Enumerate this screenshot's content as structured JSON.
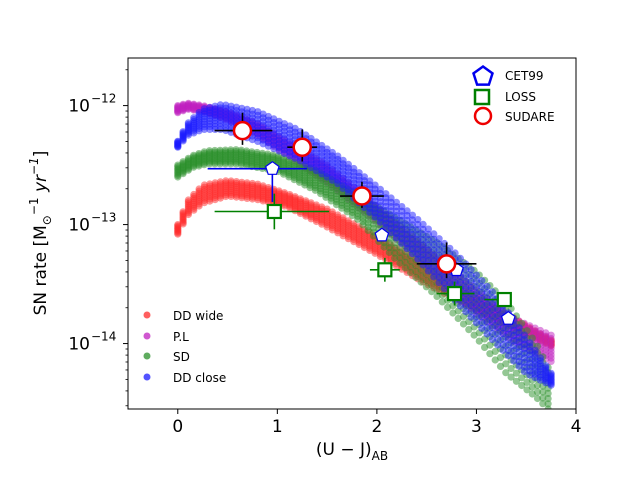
{
  "chart_data": {
    "type": "scatter",
    "title": "",
    "xlabel": "(U − J)",
    "xlabel_sub": "AB",
    "ylabel": "SN rate [M",
    "ylabel_sub": "⊙",
    "ylabel_sup": "−1",
    "ylabel_tail": " yr",
    "ylabel_tail_sup": "−1",
    "ylabel_close": "]",
    "xlim": [
      -0.5,
      4.0
    ],
    "ylim_log10": [
      -14.55,
      -11.6
    ],
    "xticks": [
      0,
      1,
      2,
      3,
      4
    ],
    "xtick_labels": [
      "0",
      "1",
      "2",
      "3",
      "4"
    ],
    "yticks_log10": [
      -14,
      -13,
      -12
    ],
    "ytick_labels": [
      "10",
      "10",
      "10"
    ],
    "ytick_exponents": [
      "−14",
      "−13",
      "−12"
    ],
    "legend_position": "upper-right",
    "legend2_position": "lower-left",
    "model_series": [
      {
        "name": "DD wide",
        "color": "#ff2a2a",
        "x": [
          0.0,
          0.1,
          0.25,
          0.5,
          0.8,
          1.1,
          1.5,
          2.0,
          2.5,
          3.0,
          3.4,
          3.75
        ],
        "upper": [
          -13.0,
          -12.8,
          -12.67,
          -12.63,
          -12.66,
          -12.74,
          -12.87,
          -13.1,
          -13.35,
          -13.62,
          -13.8,
          -13.97
        ],
        "lower": [
          -13.08,
          -12.92,
          -12.82,
          -12.76,
          -12.79,
          -12.85,
          -13.02,
          -13.25,
          -13.5,
          -13.72,
          -13.88,
          -14.02
        ]
      },
      {
        "name": "P.L",
        "color": "#c020c0",
        "x": [
          0.0,
          0.1,
          0.25,
          0.5,
          0.8,
          1.1,
          1.5,
          2.0,
          2.5,
          3.0,
          3.4,
          3.75
        ],
        "upper": [
          -12.0,
          -11.98,
          -12.0,
          -12.05,
          -12.15,
          -12.3,
          -12.5,
          -12.85,
          -13.2,
          -13.55,
          -13.8,
          -13.93
        ],
        "lower": [
          -12.06,
          -12.03,
          -12.05,
          -12.12,
          -12.25,
          -12.42,
          -12.65,
          -12.98,
          -13.35,
          -13.75,
          -14.0,
          -14.15
        ]
      },
      {
        "name": "SD",
        "color": "#2a902a",
        "x": [
          0.0,
          0.15,
          0.3,
          0.6,
          1.0,
          1.4,
          1.8,
          2.2,
          2.6,
          3.0,
          3.3,
          3.6,
          3.72
        ],
        "upper": [
          -12.5,
          -12.42,
          -12.38,
          -12.37,
          -12.42,
          -12.55,
          -12.75,
          -12.95,
          -13.15,
          -13.4,
          -13.65,
          -14.0,
          -14.2
        ],
        "lower": [
          -12.6,
          -12.52,
          -12.49,
          -12.49,
          -12.55,
          -12.72,
          -12.95,
          -13.3,
          -13.6,
          -13.95,
          -14.25,
          -14.45,
          -14.55
        ]
      },
      {
        "name": "DD close",
        "color": "#1a1aff",
        "x": [
          0.0,
          0.1,
          0.25,
          0.45,
          0.8,
          1.2,
          1.6,
          2.0,
          2.4,
          2.8,
          3.2,
          3.5,
          3.75
        ],
        "upper": [
          -12.3,
          -12.15,
          -12.03,
          -11.99,
          -12.05,
          -12.2,
          -12.42,
          -12.68,
          -12.95,
          -13.25,
          -13.6,
          -13.95,
          -14.25
        ],
        "lower": [
          -12.35,
          -12.25,
          -12.2,
          -12.2,
          -12.3,
          -12.45,
          -12.65,
          -12.95,
          -13.28,
          -13.65,
          -14.0,
          -14.25,
          -14.35
        ]
      }
    ],
    "observations": [
      {
        "name": "CET99",
        "marker": "pentagon",
        "color": "#0000ee",
        "points": [
          {
            "x": 0.95,
            "y_log10": -12.53,
            "xerr": [
              0.65,
              0.35
            ],
            "yerr": [
              0.28,
              0.0
            ]
          },
          {
            "x": 2.05,
            "y_log10": -13.09,
            "xerr": [
              0,
              0
            ],
            "yerr": [
              0,
              0
            ]
          },
          {
            "x": 2.8,
            "y_log10": -13.38,
            "xerr": [
              0,
              0
            ],
            "yerr": [
              0,
              0
            ]
          },
          {
            "x": 3.32,
            "y_log10": -13.79,
            "xerr": [
              0,
              0
            ],
            "yerr": [
              0,
              0
            ]
          }
        ]
      },
      {
        "name": "LOSS",
        "marker": "square",
        "color": "#008000",
        "points": [
          {
            "x": 0.97,
            "y_log10": -12.89,
            "xerr": [
              0.6,
              0.55
            ],
            "yerr": [
              0.15,
              0.15
            ]
          },
          {
            "x": 2.08,
            "y_log10": -13.38,
            "xerr": [
              0.15,
              0.15
            ],
            "yerr": [
              0.1,
              0.1
            ]
          },
          {
            "x": 2.78,
            "y_log10": -13.58,
            "xerr": [
              0.18,
              0.2
            ],
            "yerr": [
              0.1,
              0.1
            ]
          },
          {
            "x": 3.28,
            "y_log10": -13.63,
            "xerr": [
              0.2,
              0.0
            ],
            "yerr": [
              0,
              0
            ]
          }
        ]
      },
      {
        "name": "SUDARE",
        "marker": "circle",
        "color": "#ee0000",
        "points": [
          {
            "x": 0.65,
            "y_log10": -12.21,
            "xerr": [
              0.28,
              0.3
            ],
            "yerr": [
              0.12,
              0.15
            ]
          },
          {
            "x": 1.25,
            "y_log10": -12.35,
            "xerr": [
              0.15,
              0.15
            ],
            "yerr": [
              0.12,
              0.15
            ]
          },
          {
            "x": 1.85,
            "y_log10": -12.76,
            "xerr": [
              0.22,
              0.22
            ],
            "yerr": [
              0.1,
              0.12
            ]
          },
          {
            "x": 2.7,
            "y_log10": -13.33,
            "xerr": [
              0.3,
              0.3
            ],
            "yerr": [
              0.12,
              0.18
            ]
          }
        ]
      }
    ]
  }
}
